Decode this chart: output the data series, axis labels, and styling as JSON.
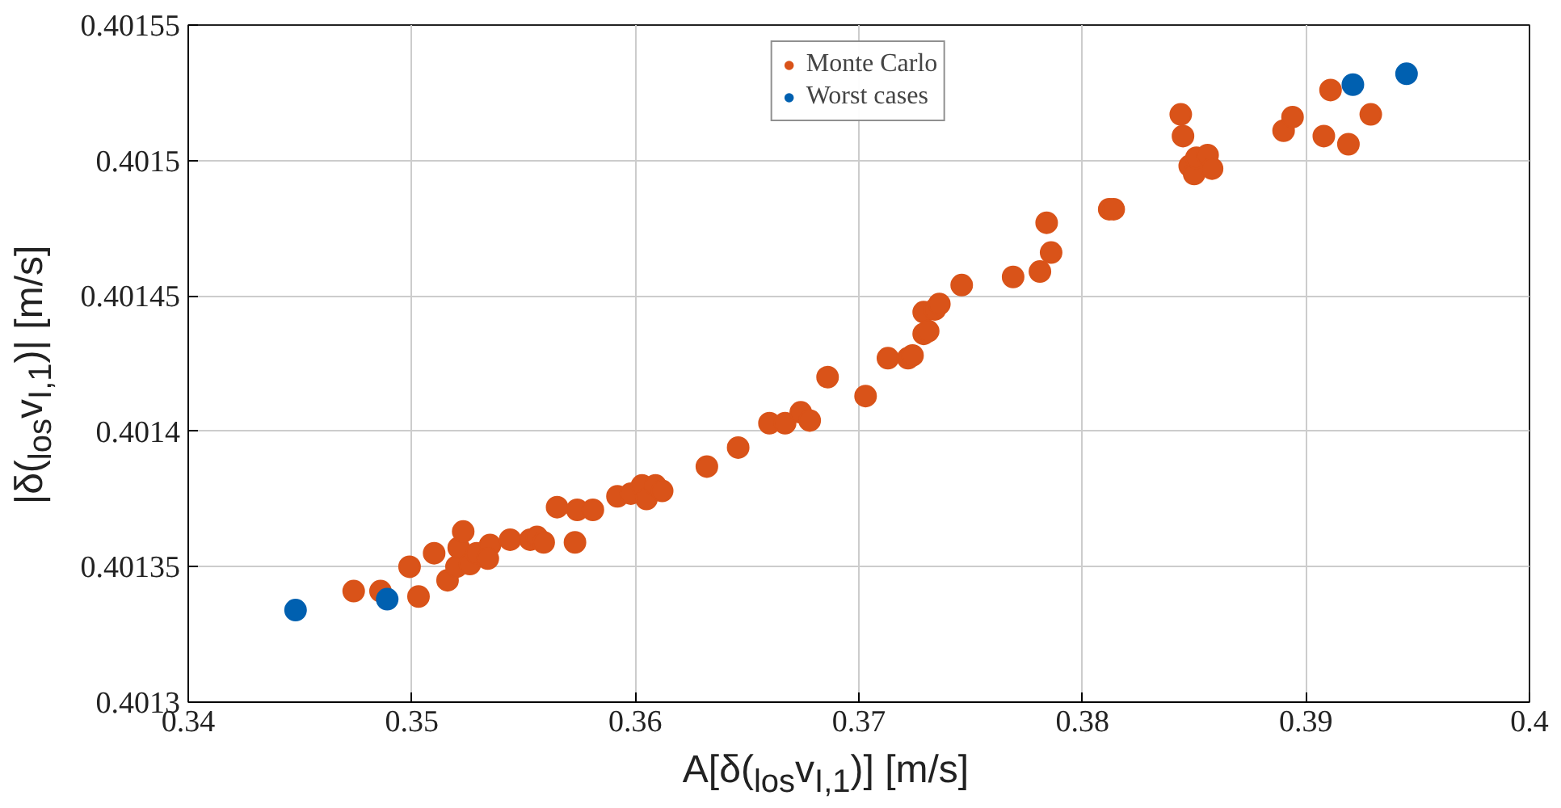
{
  "chart_data": {
    "type": "scatter",
    "xlabel": "A[δ($_{los}$v$_{I,1}$)] [m/s]",
    "ylabel": "|δ($_{los}$v$_{I,1}$)| [m/s]",
    "xlim": [
      0.34,
      0.4
    ],
    "xticks": [
      0.34,
      0.35,
      0.36,
      0.37,
      0.38,
      0.39,
      0.4
    ],
    "ylim": [
      0.4013,
      0.40155
    ],
    "yticks": [
      0.4013,
      0.40135,
      0.4014,
      0.40145,
      0.4015,
      0.40155
    ],
    "grid": true,
    "legend": "top",
    "marker": "circle",
    "series": [
      {
        "name": "Monte Carlo",
        "color": "#d95319",
        "x": [
          0.3474,
          0.3486,
          0.3499,
          0.3503,
          0.351,
          0.3516,
          0.352,
          0.3521,
          0.3523,
          0.3526,
          0.3529,
          0.3535,
          0.3534,
          0.3544,
          0.3553,
          0.3556,
          0.3559,
          0.3565,
          0.3573,
          0.3574,
          0.3581,
          0.3592,
          0.3598,
          0.3603,
          0.3605,
          0.3609,
          0.3612,
          0.3632,
          0.3646,
          0.366,
          0.3667,
          0.3674,
          0.3678,
          0.3686,
          0.3703,
          0.3713,
          0.3722,
          0.3724,
          0.3729,
          0.3729,
          0.3731,
          0.3734,
          0.3736,
          0.3746,
          0.3769,
          0.3781,
          0.3784,
          0.3786,
          0.3812,
          0.3814,
          0.3844,
          0.3845,
          0.3848,
          0.385,
          0.3851,
          0.3856,
          0.3858,
          0.389,
          0.3894,
          0.3908,
          0.3911,
          0.3919,
          0.3929
        ],
        "values": [
          0.401341,
          0.401341,
          0.40135,
          0.401339,
          0.401355,
          0.401345,
          0.40135,
          0.401357,
          0.401363,
          0.401351,
          0.401355,
          0.401358,
          0.401353,
          0.40136,
          0.40136,
          0.401361,
          0.401359,
          0.401372,
          0.401359,
          0.401371,
          0.401371,
          0.401376,
          0.401377,
          0.40138,
          0.401375,
          0.40138,
          0.401378,
          0.401387,
          0.401394,
          0.401403,
          0.401403,
          0.401407,
          0.401404,
          0.40142,
          0.401413,
          0.401427,
          0.401427,
          0.401428,
          0.401436,
          0.401444,
          0.401437,
          0.401445,
          0.401447,
          0.401454,
          0.401457,
          0.401459,
          0.401477,
          0.401466,
          0.401482,
          0.401482,
          0.401517,
          0.401509,
          0.401498,
          0.401495,
          0.401501,
          0.401502,
          0.401497,
          0.401511,
          0.401516,
          0.401509,
          0.401526,
          0.401506,
          0.401517
        ]
      },
      {
        "name": "Worst cases",
        "color": "#0060b0",
        "x": [
          0.3448,
          0.3489,
          0.3921,
          0.3945
        ],
        "values": [
          0.401334,
          0.401338,
          0.401528,
          0.401532
        ]
      }
    ]
  }
}
